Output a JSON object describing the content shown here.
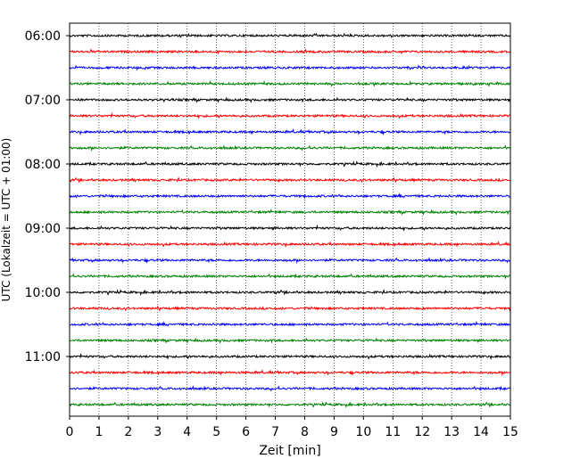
{
  "chart_data": {
    "type": "line",
    "title": "",
    "xlabel": "Zeit  [min]",
    "ylabel": "UTC (Lokalzeit = UTC + 01:00)",
    "xlim": [
      0,
      15
    ],
    "x_ticks": [
      0,
      1,
      2,
      3,
      4,
      5,
      6,
      7,
      8,
      9,
      10,
      11,
      12,
      13,
      14,
      15
    ],
    "y_tick_labels": [
      "06:00",
      "07:00",
      "08:00",
      "09:00",
      "10:00",
      "11:00"
    ],
    "trace_interval_minutes": 15,
    "first_trace": "06:00",
    "trace_count": 24,
    "trace_colors": [
      "#000000",
      "#ff0000",
      "#0000ff",
      "#008000"
    ],
    "grid": "vertical dotted at each minute",
    "legend": "none"
  }
}
